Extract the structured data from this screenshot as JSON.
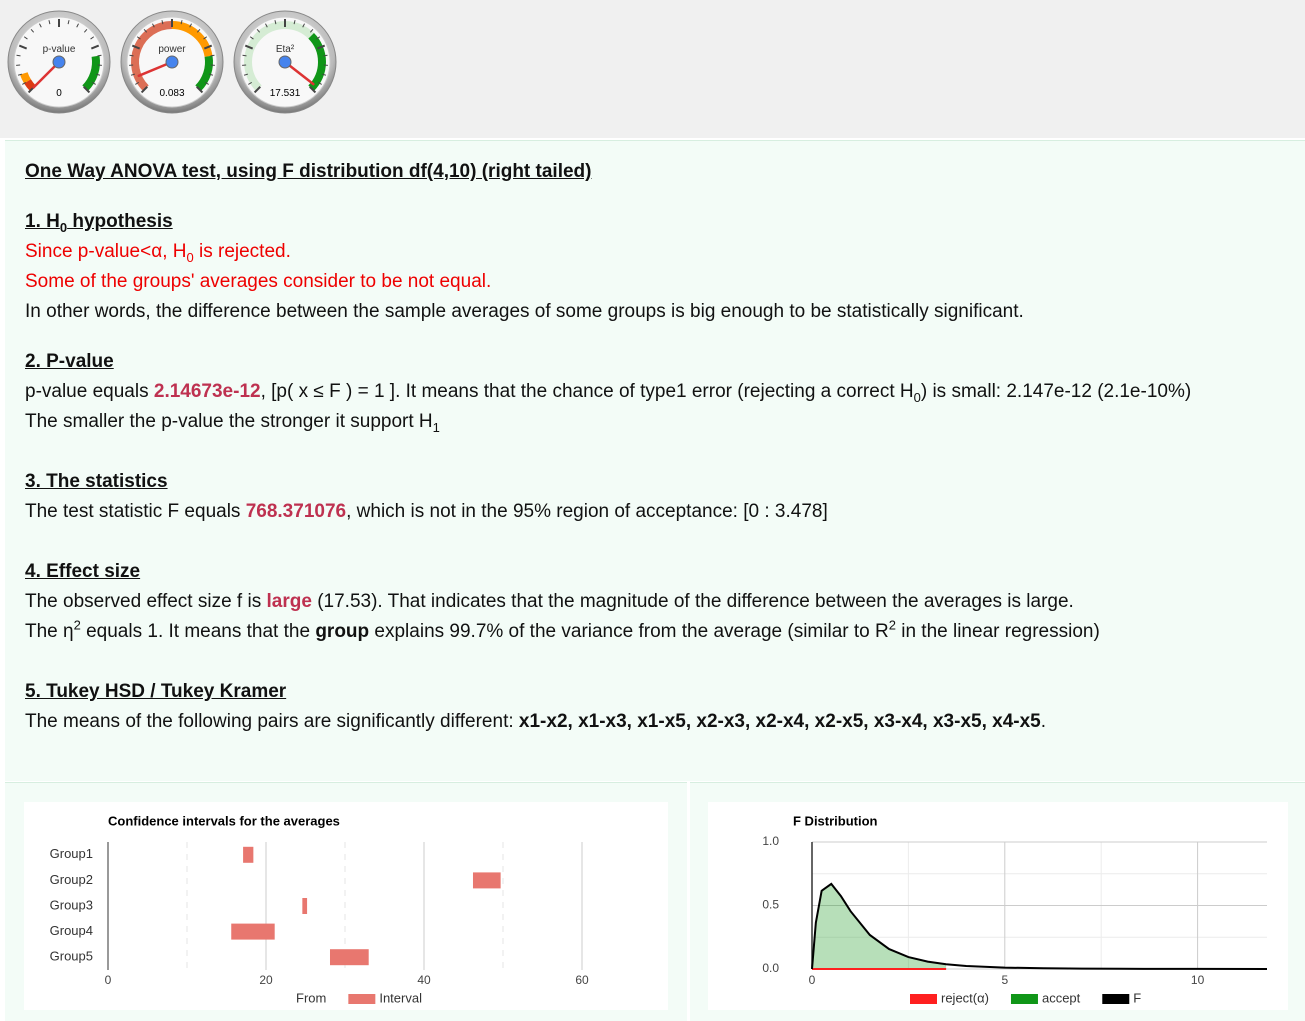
{
  "gauges": [
    {
      "label": "p-value",
      "value": 0,
      "lim": [
        0,
        1
      ],
      "bands": [
        {
          "from": 0,
          "to": 0.05,
          "color": "#dc3912"
        },
        {
          "from": 0.05,
          "to": 0.1,
          "color": "#ff9900"
        },
        {
          "from": 0.8,
          "to": 1,
          "color": "#109618"
        }
      ]
    },
    {
      "label": "power",
      "value": 0.083,
      "lim": [
        0,
        1
      ],
      "bands": [
        {
          "from": 0,
          "to": 0.5,
          "color": "#dc6e55"
        },
        {
          "from": 0.5,
          "to": 0.8,
          "color": "#ff9900"
        },
        {
          "from": 0.8,
          "to": 1,
          "color": "#109618"
        }
      ]
    },
    {
      "label": "Eta²",
      "value": 17.531,
      "lim": [
        0,
        18
      ],
      "bands": [
        {
          "from": 0,
          "to": 12,
          "color": "#d5ecd4"
        },
        {
          "from": 12,
          "to": 18,
          "color": "#109618"
        }
      ]
    }
  ],
  "report": {
    "title": "One Way ANOVA test, using F distribution df(4,10) (right tailed)",
    "sections": [
      {
        "heading": [
          {
            "text": "1. H"
          },
          {
            "text": "0",
            "style": "sub"
          },
          {
            "text": " hypothesis"
          }
        ],
        "lines": [
          {
            "color": "red",
            "parts": [
              {
                "text": "Since p-value<α, H"
              },
              {
                "text": "0",
                "style": "sub"
              },
              {
                "text": " is rejected."
              }
            ]
          },
          {
            "color": "red",
            "parts": [
              {
                "text": "Some of the groups' averages consider to be not equal."
              }
            ]
          },
          {
            "parts": [
              {
                "text": "In other words, the difference between the sample averages of some groups is big enough to be statistically significant."
              }
            ]
          }
        ]
      },
      {
        "heading": [
          {
            "text": "2. P-value"
          }
        ],
        "lines": [
          {
            "parts": [
              {
                "text": "p-value equals "
              },
              {
                "text": "2.14673e-12",
                "style": "hl"
              },
              {
                "text": ", [p( x ≤ F ) = 1 ]. It means that the chance of type1 error (rejecting a correct H"
              },
              {
                "text": "0",
                "style": "sub"
              },
              {
                "text": ") is small: 2.147e-12 (2.1e-10%)"
              }
            ]
          },
          {
            "parts": [
              {
                "text": "The smaller the p-value the stronger it support H"
              },
              {
                "text": "1",
                "style": "sub"
              }
            ]
          }
        ]
      },
      {
        "heading": [
          {
            "text": "3. The statistics"
          }
        ],
        "lines": [
          {
            "parts": [
              {
                "text": "The test statistic F equals "
              },
              {
                "text": "768.371076",
                "style": "hl"
              },
              {
                "text": ", which is not in the 95% region of acceptance: [0 : 3.478]"
              }
            ]
          }
        ]
      },
      {
        "heading": [
          {
            "text": "4. Effect size"
          }
        ],
        "lines": [
          {
            "parts": [
              {
                "text": "The observed effect size f is "
              },
              {
                "text": "large",
                "style": "hl"
              },
              {
                "text": " (17.53). That indicates that the magnitude of the difference between the averages is large."
              }
            ]
          },
          {
            "parts": [
              {
                "text": "The η"
              },
              {
                "text": "2",
                "style": "sup"
              },
              {
                "text": " equals 1. It means that the "
              },
              {
                "text": "group",
                "style": "b"
              },
              {
                "text": " explains 99.7% of the variance from the average (similar to R"
              },
              {
                "text": "2",
                "style": "sup"
              },
              {
                "text": " in the linear regression)"
              }
            ]
          }
        ]
      },
      {
        "heading": [
          {
            "text": "5. Tukey HSD / Tukey Kramer"
          }
        ],
        "lines": [
          {
            "parts": [
              {
                "text": "The means of the following pairs are significantly different: "
              },
              {
                "text": "x1-x2, x1-x3, x1-x5, x2-x3, x2-x4, x2-x5, x3-x4, x3-x5, x4-x5",
                "style": "b"
              },
              {
                "text": "."
              }
            ]
          }
        ]
      }
    ]
  },
  "chart_data": [
    {
      "type": "bar",
      "orientation": "horizontal",
      "stacked": true,
      "title": "Confidence intervals for the averages",
      "categories": [
        "Group1",
        "Group2",
        "Group3",
        "Group4",
        "Group5"
      ],
      "series": [
        {
          "name": "From",
          "color": "none",
          "values": [
            17.1,
            46.2,
            24.6,
            15.6,
            28.1
          ]
        },
        {
          "name": "Interval",
          "color": "#e8776f",
          "values": [
            1.3,
            3.5,
            0.6,
            5.5,
            4.9
          ]
        }
      ],
      "xlim": [
        0,
        70
      ],
      "xticks": [
        0,
        20,
        40,
        60
      ],
      "xgrid_minor": [
        10,
        30,
        50
      ],
      "legend": "bottom"
    },
    {
      "type": "line",
      "title": "F Distribution",
      "x": [
        0,
        0.1,
        0.25,
        0.5,
        0.75,
        1,
        1.5,
        2,
        2.5,
        3,
        3.478,
        4,
        5,
        6,
        7,
        8,
        10,
        11.8
      ],
      "series": [
        {
          "name": "reject(α)",
          "color": "#ff2020",
          "values": [
            0,
            0,
            0,
            0,
            0,
            0,
            0,
            0,
            0,
            0,
            0,
            null,
            null,
            null,
            null,
            null,
            null,
            null
          ]
        },
        {
          "name": "accept",
          "color": "#109618",
          "area": true,
          "values": [
            0,
            0.365,
            0.616,
            0.67,
            0.574,
            0.455,
            0.268,
            0.157,
            0.094,
            0.058,
            0.037,
            null,
            null,
            null,
            null,
            null,
            null,
            null
          ]
        },
        {
          "name": "F",
          "color": "#000000",
          "values": [
            0,
            0.365,
            0.616,
            0.67,
            0.574,
            0.455,
            0.268,
            0.157,
            0.094,
            0.058,
            0.037,
            0.024,
            0.011,
            0.0055,
            0.0029,
            0.0017,
            0.0006,
            0.0003
          ]
        }
      ],
      "xlim": [
        0,
        11.8
      ],
      "xticks": [
        0,
        5,
        10
      ],
      "xgrid_minor": [
        2.5,
        7.5
      ],
      "ylim": [
        0,
        1
      ],
      "yticks": [
        {
          "value": 0,
          "label": "0.0"
        },
        0.5,
        {
          "value": 1,
          "label": "1.0"
        }
      ],
      "ygrid_minor": [
        0.25,
        0.75
      ],
      "grid": true,
      "legend": "bottom"
    }
  ]
}
